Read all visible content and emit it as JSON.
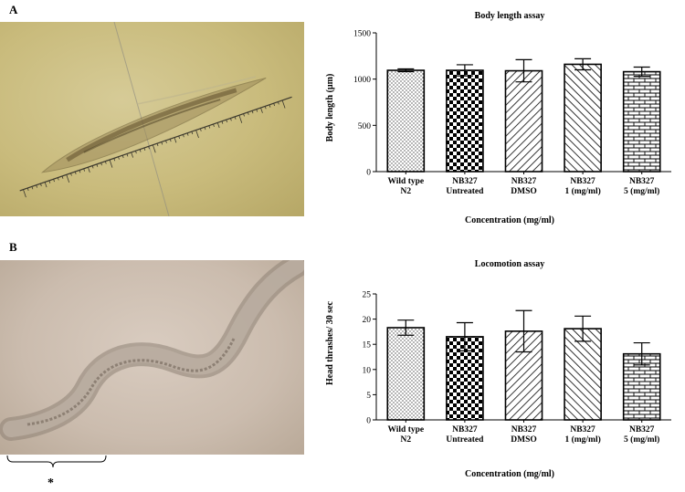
{
  "panels": [
    {
      "letter": "A"
    },
    {
      "letter": "B"
    }
  ],
  "annotation": {
    "asterisk": "*"
  },
  "chart_data": [
    {
      "type": "bar",
      "title": "Body length assay",
      "xlabel": "Concentration (mg/ml)",
      "ylabel": "Body length (µm)",
      "ylim": [
        0,
        1500
      ],
      "yticks": [
        0,
        500,
        1000,
        1500
      ],
      "categories": [
        [
          "Wild type",
          "N2"
        ],
        [
          "NB327",
          "Untreated"
        ],
        [
          "NB327",
          "DMSO"
        ],
        [
          "NB327",
          "1 (mg/ml)"
        ],
        [
          "NB327",
          "5 (mg/ml)"
        ]
      ],
      "values": [
        1095,
        1095,
        1090,
        1160,
        1080
      ],
      "errors": [
        15,
        60,
        120,
        60,
        50
      ],
      "patterns": [
        "dots",
        "checker",
        "diag-right",
        "diag-left",
        "brick"
      ],
      "grid": false
    },
    {
      "type": "bar",
      "title": "Locomotion assay",
      "xlabel": "Concentration (mg/ml)",
      "ylabel": "Head thrashes/ 30 sec",
      "ylim": [
        0,
        25
      ],
      "yticks": [
        0,
        5,
        10,
        15,
        20,
        25
      ],
      "categories": [
        [
          "Wild type",
          "N2"
        ],
        [
          "NB327",
          "Untreated"
        ],
        [
          "NB327",
          "DMSO"
        ],
        [
          "NB327",
          "1 (mg/ml)"
        ],
        [
          "NB327",
          "5 (mg/ml)"
        ]
      ],
      "values": [
        18.3,
        16.5,
        17.6,
        18.1,
        13.1
      ],
      "errors": [
        1.5,
        2.8,
        4.1,
        2.5,
        2.2
      ],
      "patterns": [
        "dots",
        "checker",
        "diag-right",
        "diag-left",
        "brick"
      ],
      "grid": false
    }
  ]
}
